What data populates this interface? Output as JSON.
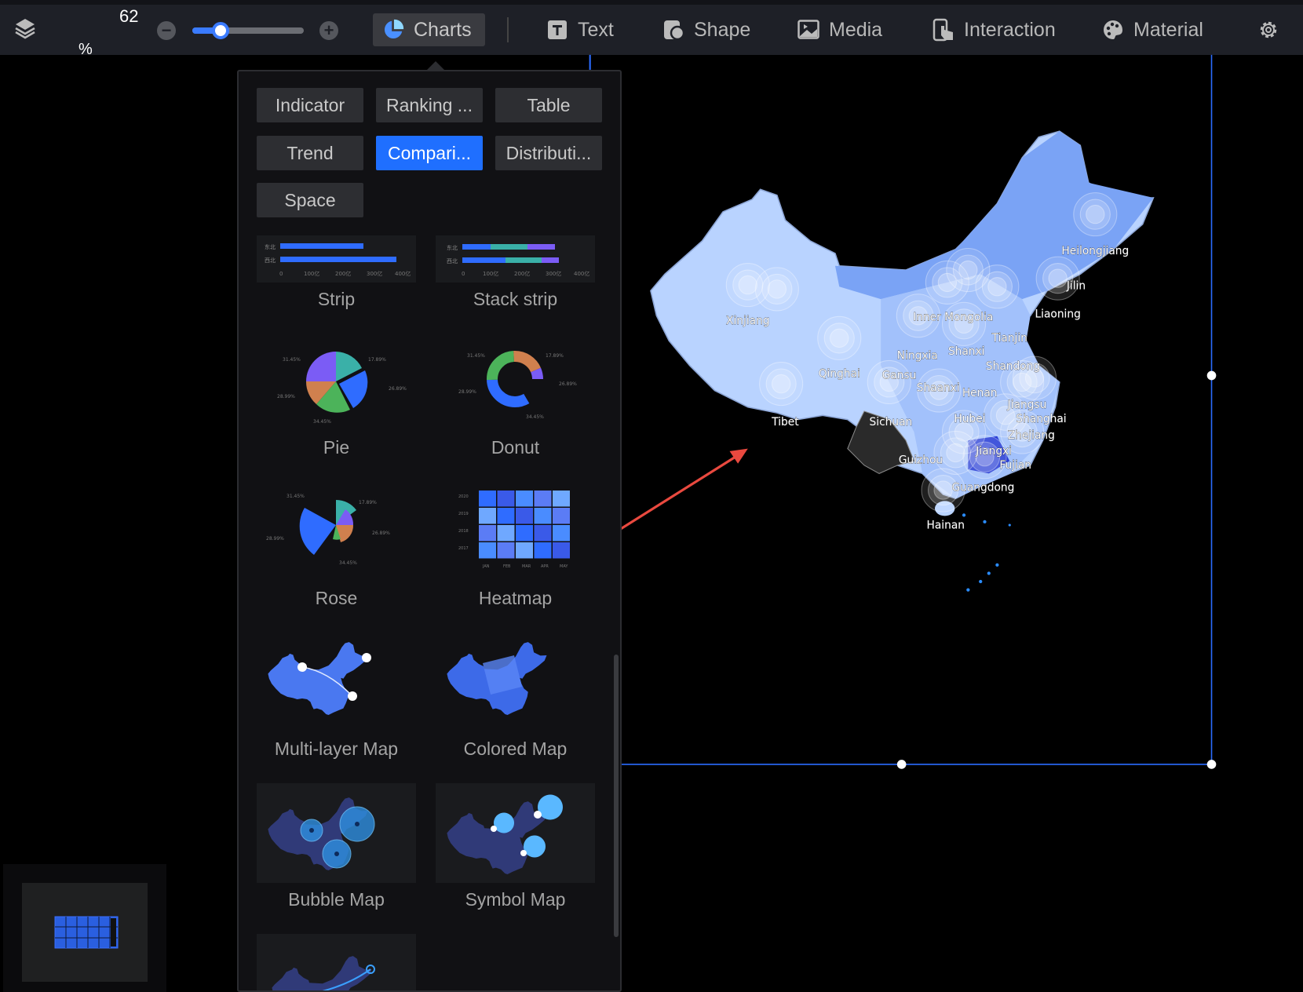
{
  "toolbar": {
    "zoom_value": "62",
    "zoom_unit": "%",
    "zoom_level_fraction": 0.25,
    "nav": [
      {
        "label": "Charts",
        "icon": "pie-chart-icon",
        "active": true
      },
      {
        "label": "Text",
        "icon": "text-icon"
      },
      {
        "label": "Shape",
        "icon": "shape-icon"
      },
      {
        "label": "Media",
        "icon": "image-icon"
      },
      {
        "label": "Interaction",
        "icon": "pointer-hand-icon"
      },
      {
        "label": "Material",
        "icon": "palette-icon"
      }
    ]
  },
  "panel": {
    "categories": [
      {
        "label": "Indicator"
      },
      {
        "label": "Ranking ..."
      },
      {
        "label": "Table"
      },
      {
        "label": "Trend"
      },
      {
        "label": "Compari...",
        "active": true
      },
      {
        "label": "Distributi..."
      },
      {
        "label": "Space"
      }
    ],
    "charts": [
      {
        "label": "Strip"
      },
      {
        "label": "Stack strip"
      },
      {
        "label": "Pie"
      },
      {
        "label": "Donut"
      },
      {
        "label": "Rose"
      },
      {
        "label": "Heatmap"
      },
      {
        "label": "Multi-layer Map"
      },
      {
        "label": "Colored Map"
      },
      {
        "label": "Bubble Map"
      },
      {
        "label": "Symbol Map"
      }
    ],
    "thumb_text": {
      "strip_rows": [
        "东北",
        "西北"
      ],
      "strip_ticks": [
        "0",
        "100亿",
        "200亿",
        "300亿",
        "400亿"
      ],
      "pie_pcts": [
        "31.45%",
        "17.89%",
        "26.89%",
        "28.99%",
        "34.45%"
      ],
      "heatmap_years": [
        "2020",
        "2019",
        "2018",
        "2017"
      ],
      "heatmap_months": [
        "JAN",
        "FEB",
        "MAR",
        "APR",
        "MAY"
      ]
    }
  },
  "map": {
    "labels": [
      "Heilongjiang",
      "Jilin",
      "Liaoning",
      "Xinjiang",
      "Inner Mongolia",
      "Tianjin",
      "Ningxia",
      "Shanxi",
      "Shandong",
      "Qinghai",
      "Gansu",
      "Shaanxi",
      "Henan",
      "Jiangsu",
      "Shanghai",
      "Tibet",
      "Sichuan",
      "Hubei",
      "Zhejiang",
      "Jiangxi",
      "Guizhou",
      "Fujian",
      "Guangdong",
      "Hainan"
    ],
    "colors": {
      "base": "#b9d3ff",
      "mid": "#8fb3fa",
      "dark": "#6f9af2",
      "highlight": "#2a3fd6",
      "accent": "#1f6fff",
      "arrow": "#e9493f"
    }
  }
}
